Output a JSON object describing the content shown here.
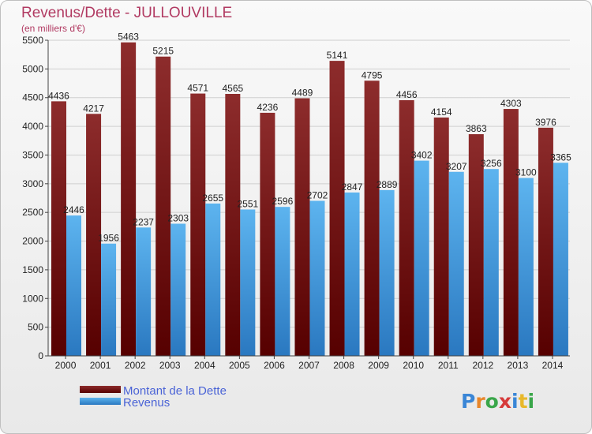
{
  "chart_data": {
    "type": "bar",
    "title": "Revenus/Dette - JULLOUVILLE",
    "subtitle": "(en milliers d'€)",
    "categories": [
      "2000",
      "2001",
      "2002",
      "2003",
      "2004",
      "2005",
      "2006",
      "2007",
      "2008",
      "2009",
      "2010",
      "2011",
      "2012",
      "2013",
      "2014"
    ],
    "series": [
      {
        "name": "Montant de la Dette",
        "color": "#7a1f1f",
        "values": [
          4436,
          4217,
          5463,
          5215,
          4571,
          4565,
          4236,
          4489,
          5141,
          4795,
          4456,
          4154,
          3863,
          4303,
          3976
        ]
      },
      {
        "name": "Revenus",
        "color": "#4fa3e3",
        "values": [
          2446,
          1956,
          2237,
          2303,
          2655,
          2551,
          2596,
          2702,
          2847,
          2889,
          3402,
          3207,
          3256,
          3100,
          3365
        ]
      }
    ],
    "ylim": [
      0,
      5500
    ],
    "yticks": [
      0,
      500,
      1000,
      1500,
      2000,
      2500,
      3000,
      3500,
      4000,
      4500,
      5000,
      5500
    ],
    "grid": true,
    "legend_position": "bottom-left"
  },
  "brand": {
    "text": "Proxiti"
  }
}
